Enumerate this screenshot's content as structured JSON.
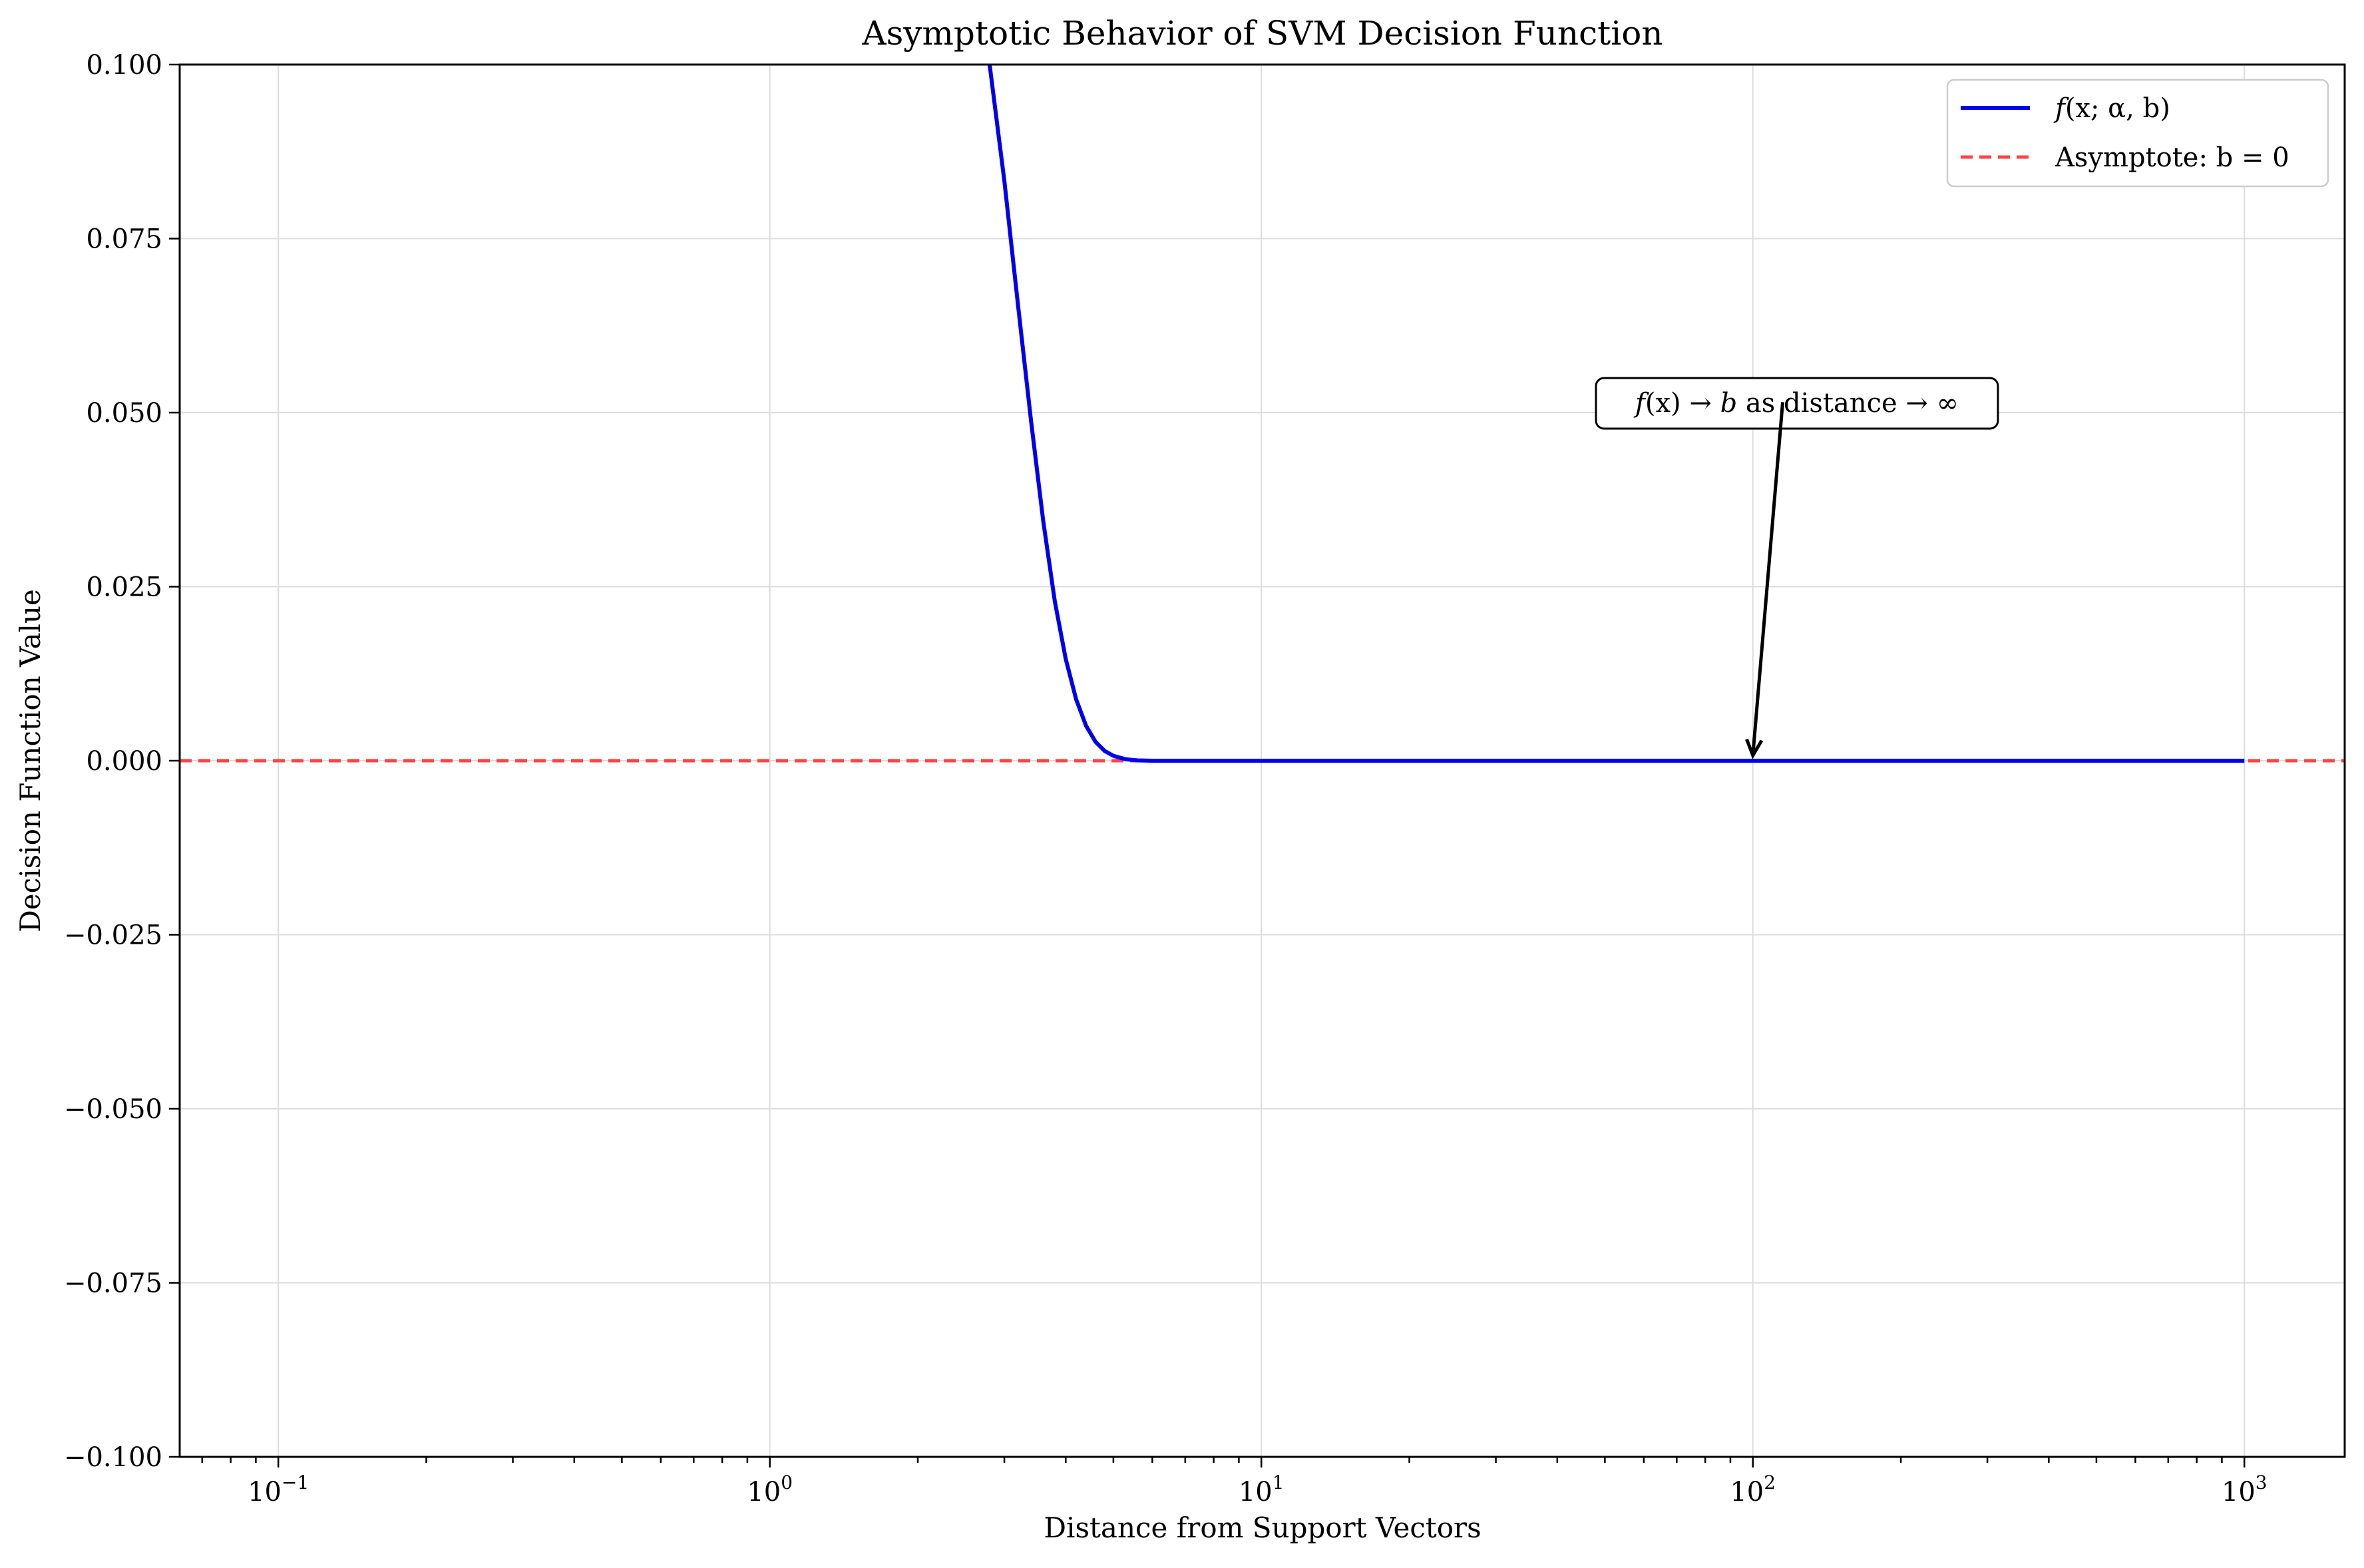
{
  "chart_data": {
    "type": "line",
    "title": "Asymptotic Behavior of SVM Decision Function",
    "xlabel": "Distance from Support Vectors",
    "ylabel": "Decision Function Value",
    "xscale": "log",
    "xlim": [
      0.063,
      1600
    ],
    "ylim": [
      -0.1,
      0.1
    ],
    "grid": true,
    "legend_position": "top-right",
    "x_ticks": [
      {
        "value": 0.1,
        "base": "10",
        "exp": "−1"
      },
      {
        "value": 1,
        "base": "10",
        "exp": "0"
      },
      {
        "value": 10,
        "base": "10",
        "exp": "1"
      },
      {
        "value": 100,
        "base": "10",
        "exp": "2"
      },
      {
        "value": 1000,
        "base": "10",
        "exp": "3"
      }
    ],
    "y_ticks": [
      {
        "value": 0.1,
        "label": "0.100"
      },
      {
        "value": 0.075,
        "label": "0.075"
      },
      {
        "value": 0.05,
        "label": "0.050"
      },
      {
        "value": 0.025,
        "label": "0.025"
      },
      {
        "value": 0.0,
        "label": "0.000"
      },
      {
        "value": -0.025,
        "label": "−0.025"
      },
      {
        "value": -0.05,
        "label": "−0.050"
      },
      {
        "value": -0.075,
        "label": "−0.075"
      },
      {
        "value": -0.1,
        "label": "−0.100"
      }
    ],
    "series": [
      {
        "name": "f(x; α, b)",
        "color": "#0000ee",
        "style": "solid",
        "x": [
          2.8,
          3.0,
          3.2,
          3.4,
          3.6,
          3.8,
          4.0,
          4.2,
          4.4,
          4.6,
          4.8,
          5.0,
          5.3,
          5.6,
          6.0,
          7.0,
          10,
          20,
          50,
          100,
          200,
          500,
          1000
        ],
        "y": [
          0.1,
          0.0833,
          0.0653,
          0.0488,
          0.0344,
          0.0229,
          0.0146,
          0.0088,
          0.005,
          0.0027,
          0.0014,
          0.0007,
          0.0002,
          5e-05,
          0.0,
          0.0,
          0.0,
          0.0,
          0.0,
          0.0,
          0.0,
          0.0,
          0.0
        ]
      },
      {
        "name": "Asymptote: b = 0",
        "color": "#ff4444",
        "style": "dashed",
        "y_constant": 0.0
      }
    ],
    "legend": {
      "entry1": {
        "func": "f",
        "args": "(x; α, b)"
      },
      "entry2": "Asymptote: b = 0"
    },
    "annotation": {
      "pre": "f",
      "mid1": "(x) → ",
      "b": "b",
      "mid2": " as distance → ∞",
      "text_x": 115,
      "text_y": 0.0515,
      "arrow_to_x": 100,
      "arrow_to_y": 0.0
    }
  }
}
